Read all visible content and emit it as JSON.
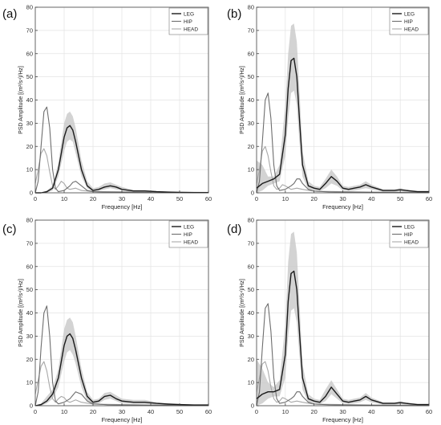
{
  "chart_data": [
    {
      "panel_label": "(a)",
      "type": "line",
      "xlabel": "Frequency [Hz]",
      "ylabel": "PSD Amplitude [(m²/s⁴)/Hz]",
      "xlim": [
        0,
        60
      ],
      "ylim": [
        0,
        80
      ],
      "xticks": [
        0,
        10,
        20,
        30,
        40,
        50,
        60
      ],
      "yticks": [
        0,
        10,
        20,
        30,
        40,
        50,
        60,
        70,
        80
      ],
      "grid": true,
      "legend": "top-right",
      "series": [
        {
          "name": "LEG",
          "color": "#1a1a1a",
          "x": [
            0,
            2,
            4,
            6,
            8,
            10,
            11,
            12,
            13,
            14,
            16,
            18,
            20,
            22,
            24,
            26,
            28,
            30,
            34,
            38,
            42,
            46,
            50,
            55,
            60
          ],
          "values": [
            0,
            0,
            0.5,
            2,
            10,
            24,
            28,
            29,
            27,
            22,
            10,
            3,
            1,
            1.5,
            2.5,
            3,
            2.5,
            1.5,
            0.8,
            0.8,
            0.5,
            0.3,
            0.2,
            0.1,
            0.1
          ],
          "band_upper": [
            0,
            0,
            1,
            3,
            13,
            30,
            34,
            35,
            33,
            28,
            14,
            5,
            2,
            2.5,
            4,
            4.5,
            3.5,
            2.5,
            1.2,
            1.2,
            0.8,
            0.5,
            0.3,
            0.2,
            0.2
          ],
          "band_lower": [
            0,
            0,
            0,
            1,
            7,
            18,
            22,
            23,
            22,
            17,
            7,
            2,
            0.5,
            0.8,
            1.5,
            2,
            1.5,
            1,
            0.5,
            0.5,
            0.3,
            0.2,
            0.1,
            0.05,
            0.05
          ]
        },
        {
          "name": "HIP",
          "color": "#6e6e6e",
          "x": [
            0,
            1,
            2,
            3,
            4,
            5,
            6,
            7,
            8,
            10,
            12,
            13,
            14,
            16,
            18,
            20,
            25,
            30,
            40,
            50,
            60
          ],
          "values": [
            0,
            5,
            20,
            35,
            37,
            28,
            10,
            2,
            0.5,
            1,
            3,
            4.5,
            5,
            3,
            1,
            0.5,
            0.3,
            0.2,
            0.1,
            0.1,
            0.1
          ]
        },
        {
          "name": "HEAD",
          "color": "#a8a8a8",
          "x": [
            0,
            1,
            2,
            3,
            4,
            5,
            6,
            7,
            8,
            9,
            10,
            11,
            12,
            14,
            16,
            20,
            30,
            40,
            60
          ],
          "values": [
            4,
            10,
            17,
            19,
            16,
            9,
            3,
            1.5,
            3,
            5,
            4,
            2,
            1.5,
            2,
            1,
            0.5,
            0.5,
            0.3,
            0.2
          ]
        }
      ]
    },
    {
      "panel_label": "(b)",
      "type": "line",
      "xlabel": "Frequency [Hz]",
      "ylabel": "PSD Amplitude [(m²/s⁴)/Hz]",
      "xlim": [
        0,
        60
      ],
      "ylim": [
        0,
        80
      ],
      "xticks": [
        0,
        10,
        20,
        30,
        40,
        50,
        60
      ],
      "yticks": [
        0,
        10,
        20,
        30,
        40,
        50,
        60,
        70,
        80
      ],
      "grid": true,
      "legend": "top-right",
      "series": [
        {
          "name": "LEG",
          "color": "#1a1a1a",
          "x": [
            0,
            2,
            4,
            6,
            8,
            10,
            11,
            12,
            13,
            14,
            15,
            16,
            18,
            20,
            22,
            24,
            26,
            28,
            30,
            32,
            34,
            36,
            38,
            40,
            44,
            48,
            50,
            52,
            56,
            60
          ],
          "values": [
            2,
            4,
            5,
            6,
            8,
            25,
            45,
            57,
            58,
            50,
            30,
            12,
            3,
            2,
            1.5,
            4,
            7,
            5,
            2,
            1.5,
            2,
            2.5,
            3.5,
            2.5,
            1,
            1,
            1.3,
            1,
            0.5,
            0.5
          ],
          "band_upper": [
            14,
            12,
            7,
            7,
            12,
            38,
            60,
            72,
            73,
            65,
            42,
            18,
            5,
            3,
            2.5,
            6,
            10,
            7,
            3,
            2.5,
            3,
            3.5,
            5,
            3.5,
            1.5,
            1.5,
            2,
            1.5,
            0.8,
            0.8
          ],
          "band_lower": [
            0,
            1,
            3,
            4,
            5,
            16,
            32,
            43,
            44,
            38,
            20,
            7,
            1.5,
            1,
            0.8,
            2,
            4,
            3,
            1,
            0.8,
            1,
            1.5,
            2,
            1.5,
            0.5,
            0.5,
            0.7,
            0.5,
            0.2,
            0.2
          ]
        },
        {
          "name": "HIP",
          "color": "#6e6e6e",
          "x": [
            0,
            1,
            2,
            3,
            4,
            5,
            6,
            7,
            8,
            10,
            12,
            13,
            14,
            15,
            16,
            18,
            20,
            25,
            30,
            40,
            50,
            60
          ],
          "values": [
            0,
            5,
            22,
            40,
            43,
            32,
            12,
            3,
            1,
            1.5,
            3,
            4,
            6,
            6,
            4,
            1.5,
            0.7,
            0.4,
            0.3,
            0.2,
            0.1,
            0.1
          ]
        },
        {
          "name": "HEAD",
          "color": "#a8a8a8",
          "x": [
            0,
            1,
            2,
            3,
            4,
            5,
            6,
            7,
            8,
            9,
            10,
            12,
            14,
            16,
            20,
            30,
            40,
            60
          ],
          "values": [
            4,
            10,
            18,
            20,
            16,
            9,
            3,
            1.5,
            2,
            3.5,
            3,
            1.5,
            2,
            1.5,
            0.7,
            0.5,
            0.3,
            0.2
          ]
        }
      ]
    },
    {
      "panel_label": "(c)",
      "type": "line",
      "xlabel": "Frequency [Hz]",
      "ylabel": "PSD Amplitude [(m²/s⁴)/Hz]",
      "xlim": [
        0,
        60
      ],
      "ylim": [
        0,
        80
      ],
      "xticks": [
        0,
        10,
        20,
        30,
        40,
        50,
        60
      ],
      "yticks": [
        0,
        10,
        20,
        30,
        40,
        50,
        60,
        70,
        80
      ],
      "grid": true,
      "legend": "top-right",
      "series": [
        {
          "name": "LEG",
          "color": "#1a1a1a",
          "x": [
            0,
            2,
            4,
            6,
            8,
            10,
            11,
            12,
            13,
            14,
            16,
            18,
            20,
            22,
            24,
            26,
            28,
            30,
            34,
            38,
            42,
            46,
            50,
            55,
            60
          ],
          "values": [
            0,
            0.5,
            2,
            5,
            12,
            26,
            30,
            31,
            29,
            24,
            12,
            4,
            1.5,
            2,
            4,
            4.5,
            3,
            2,
            1.5,
            1.5,
            1,
            0.7,
            0.5,
            0.3,
            0.3
          ],
          "band_upper": [
            0,
            1,
            4,
            7,
            16,
            33,
            37,
            38,
            36,
            30,
            16,
            6,
            2.5,
            3,
            5.5,
            6,
            4.5,
            3,
            2.5,
            2.5,
            1.5,
            1,
            0.8,
            0.5,
            0.5
          ],
          "band_lower": [
            0,
            0,
            1,
            3,
            8,
            19,
            23,
            24,
            22,
            18,
            8,
            2,
            0.8,
            1,
            2.5,
            3,
            2,
            1,
            0.8,
            0.8,
            0.5,
            0.3,
            0.2,
            0.1,
            0.1
          ]
        },
        {
          "name": "HIP",
          "color": "#6e6e6e",
          "x": [
            0,
            1,
            2,
            3,
            4,
            5,
            6,
            7,
            8,
            10,
            12,
            13,
            14,
            16,
            18,
            20,
            25,
            30,
            40,
            50,
            60
          ],
          "values": [
            0,
            6,
            25,
            40,
            43,
            30,
            10,
            2,
            0.8,
            1.5,
            3,
            4.5,
            6,
            5,
            2,
            0.8,
            0.4,
            0.3,
            0.2,
            0.1,
            0.1
          ]
        },
        {
          "name": "HEAD",
          "color": "#a8a8a8",
          "x": [
            0,
            1,
            2,
            3,
            4,
            5,
            6,
            7,
            8,
            9,
            10,
            11,
            12,
            14,
            16,
            20,
            30,
            40,
            60
          ],
          "values": [
            5,
            11,
            17,
            19,
            15,
            8,
            3,
            1.5,
            3,
            4,
            3.5,
            2,
            1.5,
            2.5,
            1.5,
            0.7,
            0.5,
            0.3,
            0.2
          ]
        }
      ]
    },
    {
      "panel_label": "(d)",
      "type": "line",
      "xlabel": "Frequency [Hz]",
      "ylabel": "PSD Amplitude [(m²/s⁴)/Hz]",
      "xlim": [
        0,
        60
      ],
      "ylim": [
        0,
        80
      ],
      "xticks": [
        0,
        10,
        20,
        30,
        40,
        50,
        60
      ],
      "yticks": [
        0,
        10,
        20,
        30,
        40,
        50,
        60,
        70,
        80
      ],
      "grid": true,
      "legend": "top-right",
      "series": [
        {
          "name": "LEG",
          "color": "#1a1a1a",
          "x": [
            0,
            2,
            4,
            6,
            8,
            10,
            11,
            12,
            13,
            14,
            15,
            16,
            18,
            20,
            22,
            24,
            26,
            28,
            30,
            32,
            34,
            36,
            38,
            40,
            44,
            48,
            50,
            52,
            56,
            60
          ],
          "values": [
            3,
            5,
            6,
            6,
            7,
            22,
            45,
            57,
            58,
            50,
            30,
            12,
            3,
            2,
            1.5,
            4,
            8,
            5,
            2,
            1.5,
            2,
            2.5,
            4,
            2.5,
            1,
            1,
            1.3,
            1,
            0.5,
            0.5
          ],
          "band_upper": [
            20,
            16,
            10,
            8,
            11,
            35,
            62,
            74,
            75,
            66,
            42,
            18,
            5,
            3,
            2.5,
            7,
            11,
            7,
            3,
            2.5,
            3,
            3.5,
            5.5,
            3.5,
            1.5,
            1.5,
            2,
            1.5,
            0.8,
            0.8
          ],
          "band_lower": [
            0,
            1,
            3,
            4,
            4,
            12,
            30,
            41,
            42,
            36,
            20,
            7,
            1.5,
            1,
            0.8,
            2,
            5,
            3,
            1,
            0.8,
            1,
            1.5,
            2.5,
            1.5,
            0.5,
            0.5,
            0.7,
            0.5,
            0.2,
            0.2
          ]
        },
        {
          "name": "HIP",
          "color": "#6e6e6e",
          "x": [
            0,
            1,
            2,
            3,
            4,
            5,
            6,
            7,
            8,
            10,
            12,
            13,
            14,
            15,
            16,
            18,
            20,
            25,
            30,
            40,
            50,
            60
          ],
          "values": [
            0,
            6,
            25,
            42,
            44,
            32,
            12,
            3,
            1,
            1.5,
            3,
            4,
            6,
            6,
            4,
            1.5,
            0.7,
            0.4,
            0.3,
            0.2,
            0.1,
            0.1
          ]
        },
        {
          "name": "HEAD",
          "color": "#a8a8a8",
          "x": [
            0,
            1,
            2,
            3,
            4,
            5,
            6,
            7,
            8,
            9,
            10,
            12,
            14,
            16,
            20,
            30,
            40,
            60
          ],
          "values": [
            6,
            12,
            18,
            19,
            15,
            8,
            3,
            1.5,
            2,
            3.5,
            3,
            1.5,
            2,
            1.5,
            0.7,
            0.5,
            0.3,
            0.2
          ]
        }
      ]
    }
  ]
}
